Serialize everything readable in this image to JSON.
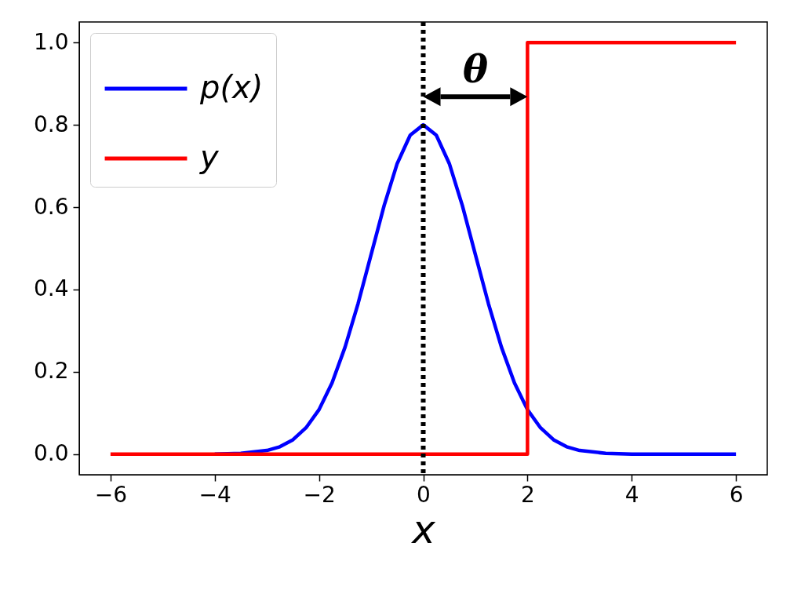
{
  "chart_data": {
    "type": "line",
    "xlabel": "x",
    "xlim": [
      -6.6,
      6.6
    ],
    "ylim": [
      -0.05,
      1.05
    ],
    "xticks": [
      {
        "value": -6,
        "label": "−6"
      },
      {
        "value": -4,
        "label": "−4"
      },
      {
        "value": -2,
        "label": "−2"
      },
      0,
      2,
      4,
      6
    ],
    "yticks": [
      {
        "value": 0,
        "label": "0.0"
      },
      {
        "value": 0.2,
        "label": "0.2"
      },
      {
        "value": 0.4,
        "label": "0.4"
      },
      {
        "value": 0.6,
        "label": "0.6"
      },
      {
        "value": 0.8,
        "label": "0.8"
      },
      {
        "value": 1,
        "label": "1.0"
      }
    ],
    "series": [
      {
        "name": "p(x)",
        "type": "line",
        "color": "#0000ff",
        "x": [
          -4,
          -3.5,
          -3,
          -2.75,
          -2.5,
          -2.25,
          -2,
          -1.75,
          -1.5,
          -1.25,
          -1,
          -0.75,
          -0.5,
          -0.25,
          0,
          0.25,
          0.5,
          0.75,
          1,
          1.25,
          1.5,
          1.75,
          2,
          2.25,
          2.5,
          2.75,
          3,
          3.5,
          4,
          5,
          6
        ],
        "values": [
          0,
          0.002,
          0.009,
          0.018,
          0.035,
          0.064,
          0.108,
          0.173,
          0.26,
          0.366,
          0.485,
          0.604,
          0.706,
          0.775,
          0.8,
          0.775,
          0.706,
          0.604,
          0.485,
          0.366,
          0.26,
          0.173,
          0.108,
          0.064,
          0.035,
          0.018,
          0.009,
          0.002,
          0,
          0,
          0
        ]
      },
      {
        "name": "y",
        "type": "step",
        "color": "#ff0000",
        "x": [
          -6,
          2,
          6
        ],
        "values": [
          0,
          1,
          1
        ]
      }
    ],
    "ref_lines": [
      {
        "axis": "x",
        "value": 0,
        "color": "#000000",
        "line_style": "dotted"
      }
    ],
    "annotations": [
      "θ"
    ],
    "legend": "top left",
    "grid": false
  }
}
